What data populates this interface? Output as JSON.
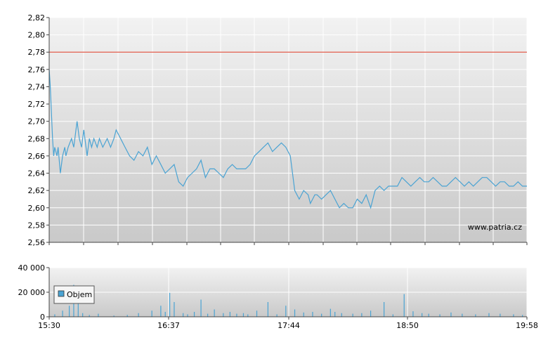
{
  "watermark": "www.patria.cz",
  "legend": {
    "label": "Objem",
    "color": "#4aa3d3"
  },
  "colors": {
    "price_line": "#4aa3d3",
    "reference_line": "#e05a4a",
    "volume_bars": "#4aa3d3",
    "grid": "#ffffff",
    "background_top": "#f2f2f2",
    "background_bottom": "#c8c8c8"
  },
  "chart_data": [
    {
      "type": "line",
      "name": "price",
      "ylim": [
        2.56,
        2.82
      ],
      "yticks": [
        "2,56",
        "2,58",
        "2,60",
        "2,62",
        "2,64",
        "2,66",
        "2,68",
        "2,70",
        "2,72",
        "2,74",
        "2,76",
        "2,78",
        "2,80",
        "2,82"
      ],
      "xticks": [
        "15:30",
        "16:37",
        "17:44",
        "18:50",
        "19:58"
      ],
      "x_minutes": [
        0,
        1,
        2,
        3,
        4,
        5,
        7,
        8,
        10,
        12,
        14,
        15,
        17,
        20,
        22,
        24,
        25,
        27,
        29,
        31,
        34,
        36,
        38,
        40,
        43,
        45,
        48,
        52,
        55,
        58,
        60,
        64,
        68,
        72,
        76,
        80,
        84,
        88,
        92,
        96,
        100,
        104,
        108,
        112,
        116,
        120,
        124,
        128,
        132,
        136,
        140,
        144,
        148,
        152,
        156,
        160,
        164,
        168,
        172,
        176,
        180,
        184,
        188,
        192,
        196,
        200,
        204,
        208,
        212,
        216,
        220,
        224,
        228,
        232,
        234,
        236,
        238,
        240,
        244,
        248,
        252,
        256,
        260,
        264,
        268,
        272,
        276,
        280,
        284,
        288,
        292,
        296,
        300,
        304,
        308,
        312,
        316,
        320,
        324,
        328,
        332,
        336,
        340,
        344,
        348,
        352,
        356,
        360,
        364,
        368,
        372,
        376,
        380,
        384,
        388,
        392,
        396,
        400,
        404,
        408,
        412,
        416,
        420,
        424,
        428
      ],
      "values": [
        2.76,
        2.74,
        2.71,
        2.68,
        2.66,
        2.67,
        2.66,
        2.67,
        2.64,
        2.66,
        2.67,
        2.66,
        2.67,
        2.68,
        2.67,
        2.69,
        2.7,
        2.68,
        2.67,
        2.69,
        2.66,
        2.68,
        2.67,
        2.68,
        2.67,
        2.68,
        2.67,
        2.68,
        2.67,
        2.68,
        2.69,
        2.68,
        2.67,
        2.66,
        2.655,
        2.665,
        2.66,
        2.67,
        2.65,
        2.66,
        2.65,
        2.64,
        2.645,
        2.65,
        2.63,
        2.625,
        2.635,
        2.64,
        2.645,
        2.655,
        2.635,
        2.645,
        2.645,
        2.64,
        2.635,
        2.645,
        2.65,
        2.645,
        2.645,
        2.645,
        2.65,
        2.66,
        2.665,
        2.67,
        2.675,
        2.665,
        2.67,
        2.675,
        2.67,
        2.66,
        2.62,
        2.61,
        2.62,
        2.615,
        2.605,
        2.61,
        2.615,
        2.615,
        2.61,
        2.615,
        2.62,
        2.61,
        2.6,
        2.605,
        2.6,
        2.6,
        2.61,
        2.605,
        2.615,
        2.6,
        2.62,
        2.625,
        2.62,
        2.625,
        2.625,
        2.625,
        2.635,
        2.63,
        2.625,
        2.63,
        2.635,
        2.63,
        2.63,
        2.635,
        2.63,
        2.625,
        2.625,
        2.63,
        2.635,
        2.63,
        2.625,
        2.63,
        2.625,
        2.63,
        2.635,
        2.635,
        2.63,
        2.625,
        2.63,
        2.63,
        2.625,
        2.625,
        2.63,
        2.625,
        2.625
      ],
      "reference_value": 2.78
    },
    {
      "type": "bar",
      "name": "Objem",
      "ylim": [
        0,
        40000
      ],
      "yticks": [
        "0",
        "20 000",
        "40 000"
      ],
      "xticks": [
        "15:30",
        "16:37",
        "17:44",
        "18:50",
        "19:58"
      ],
      "x_minutes": [
        5,
        12,
        18,
        22,
        26,
        30,
        36,
        44,
        58,
        70,
        80,
        92,
        100,
        104,
        108,
        112,
        120,
        124,
        130,
        136,
        142,
        148,
        156,
        162,
        168,
        174,
        178,
        186,
        196,
        204,
        212,
        220,
        228,
        236,
        244,
        252,
        256,
        262,
        272,
        280,
        288,
        300,
        308,
        318,
        326,
        334,
        340,
        350,
        360,
        370,
        382,
        394,
        404,
        416,
        424
      ],
      "values": [
        2000,
        5000,
        9000,
        26000,
        11000,
        3000,
        1500,
        2500,
        1000,
        1500,
        3000,
        5000,
        9000,
        4000,
        19500,
        12000,
        3000,
        2000,
        4000,
        14000,
        2500,
        6000,
        3000,
        4000,
        2500,
        3000,
        2000,
        5000,
        12000,
        2000,
        9000,
        6000,
        3500,
        4000,
        2500,
        6500,
        4000,
        3000,
        2500,
        3000,
        5000,
        12000,
        2000,
        18500,
        4500,
        3000,
        2500,
        2000,
        3500,
        2500,
        2000,
        3000,
        2500,
        2000,
        1500
      ]
    }
  ]
}
